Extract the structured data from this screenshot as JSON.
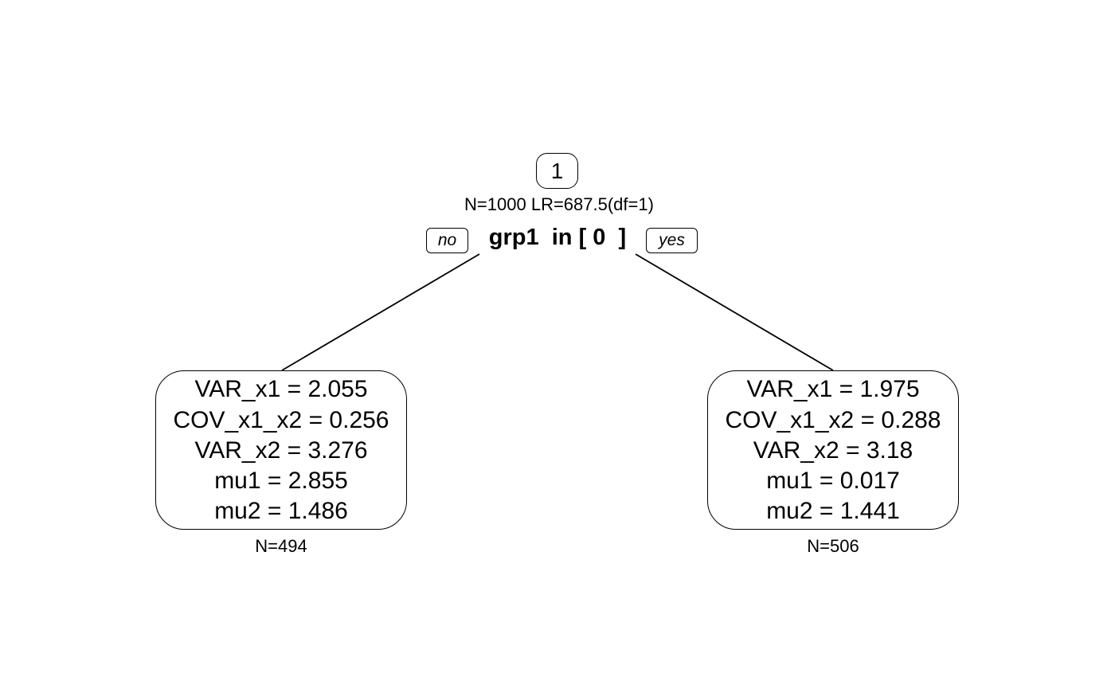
{
  "tree": {
    "root": {
      "id_label": "1",
      "stats": "N=1000 LR=687.5(df=1)",
      "split_rule": "grp1  in [ 0  ]",
      "no_label": "no",
      "yes_label": "yes"
    },
    "leaves": [
      {
        "lines": [
          "VAR_x1 = 2.055",
          "COV_x1_x2 = 0.256",
          "VAR_x2 = 3.276",
          "mu1 = 2.855",
          "mu2 = 1.486"
        ],
        "count": "N=494"
      },
      {
        "lines": [
          "VAR_x1 = 1.975",
          "COV_x1_x2 = 0.288",
          "VAR_x2 = 3.18",
          "mu1 = 0.017",
          "mu2 = 1.441"
        ],
        "count": "N=506"
      }
    ]
  }
}
